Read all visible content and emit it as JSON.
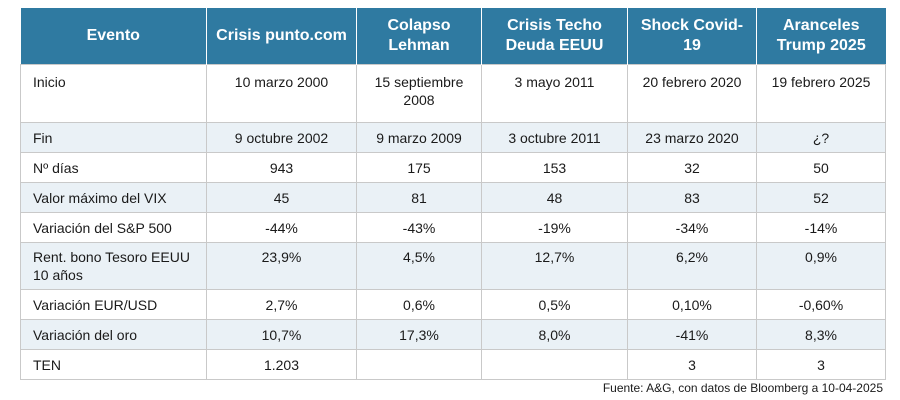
{
  "table": {
    "headers": [
      "Evento",
      "Crisis punto.com",
      "Colapso Lehman",
      "Crisis Techo Deuda EEUU",
      "Shock Covid-19",
      "Aranceles Trump 2025"
    ],
    "rows": [
      {
        "label": "Inicio",
        "values": [
          "10 marzo 2000",
          "15 septiembre 2008",
          "3 mayo 2011",
          "20 febrero 2020",
          "19 febrero 2025"
        ]
      },
      {
        "label": "Fin",
        "values": [
          "9 octubre 2002",
          "9 marzo 2009",
          "3 octubre 2011",
          "23 marzo 2020",
          "¿?"
        ]
      },
      {
        "label": "Nº días",
        "values": [
          "943",
          "175",
          "153",
          "32",
          "50"
        ]
      },
      {
        "label": "Valor máximo del VIX",
        "values": [
          "45",
          "81",
          "48",
          "83",
          "52"
        ]
      },
      {
        "label": "Variación del S&P 500",
        "values": [
          "-44%",
          "-43%",
          "-19%",
          "-34%",
          "-14%"
        ]
      },
      {
        "label": "Rent. bono Tesoro EEUU 10 años",
        "values": [
          "23,9%",
          "4,5%",
          "12,7%",
          "6,2%",
          "0,9%"
        ]
      },
      {
        "label": "Variación EUR/USD",
        "values": [
          "2,7%",
          "0,6%",
          "0,5%",
          "0,10%",
          "-0,60%"
        ]
      },
      {
        "label": "Variación del oro",
        "values": [
          "10,7%",
          "17,3%",
          "8,0%",
          "-41%",
          "8,3%"
        ]
      },
      {
        "label": "TEN",
        "values": [
          "1.203",
          "",
          "",
          "3",
          "3"
        ]
      }
    ]
  },
  "source": "Fuente: A&G, con datos de Bloomberg a 10-04-2025",
  "colors": {
    "header_bg": "#2f7aa1",
    "alt_row_bg": "#eaf1f6",
    "border": "#c9c9c9"
  }
}
